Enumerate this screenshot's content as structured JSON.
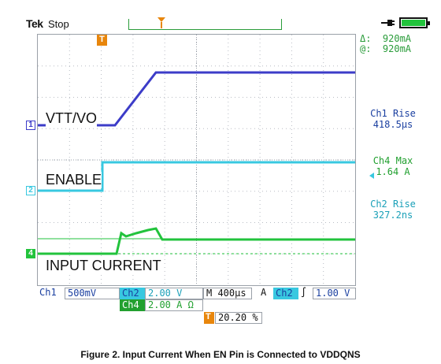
{
  "header": {
    "brand": "Tek",
    "status": "Stop",
    "trigger_marker": "T"
  },
  "cursor_readout": {
    "delta": "Δ:  920mA",
    "at": "@:  920mA"
  },
  "traces": {
    "ch1": {
      "marker": "1",
      "label": "VTT/VO",
      "color": "#3c3cc8"
    },
    "ch2": {
      "marker": "2",
      "label": "ENABLE",
      "color": "#38c8e0"
    },
    "ch4": {
      "marker": "4",
      "label": "INPUT CURRENT",
      "color": "#22c33c"
    }
  },
  "measurements": [
    {
      "name": "Ch1 Rise",
      "value": "418.5µs",
      "color": "#1a3fa0"
    },
    {
      "name": "Ch4 Max",
      "value": "1.64 A",
      "color": "#22a030"
    },
    {
      "name": "Ch2 Rise",
      "value": "327.2ns",
      "color": "#1aa0b8"
    }
  ],
  "settings": {
    "ch1_tag": "Ch1",
    "ch1_scale": "500mV",
    "ch2_tag": "Ch2",
    "ch2_scale": "2.00 V",
    "timebase": "M 400µs",
    "acq": "A",
    "trig_src": "Ch2",
    "trig_slope": "∫",
    "trig_level": "1.00 V",
    "ch4_tag": "Ch4",
    "ch4_scale": "2.00 A Ω",
    "trig_pos_marker": "T",
    "trig_pos": "20.20 %"
  },
  "caption": "Figure 2. Input Current When EN Pin is Connected to VDDQNS"
}
